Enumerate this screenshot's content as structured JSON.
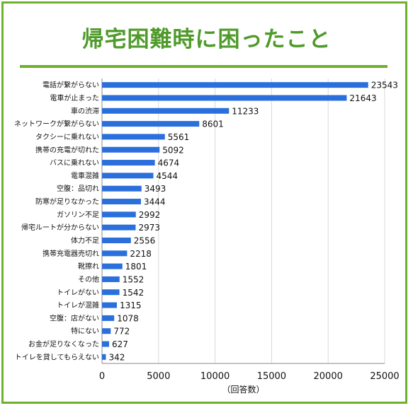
{
  "title": "帰宅困難時に困ったこと",
  "colors": {
    "bar": "#2a6fdc",
    "frame": "#6fb12c",
    "title": "#4f9a2a"
  },
  "chart_data": {
    "type": "bar",
    "orientation": "horizontal",
    "categories": [
      "電話が繋がらない",
      "電車が止まった",
      "車の渋滞",
      "ネットワークが繋がらない",
      "タクシーに乗れない",
      "携帯の充電が切れた",
      "バスに乗れない",
      "電車混雑",
      "空腹：品切れ",
      "防寒が足りなかった",
      "ガソリン不足",
      "帰宅ルートが分からない",
      "体力不足",
      "携帯充電器売切れ",
      "靴擦れ",
      "その他",
      "トイレがない",
      "トイレが混雑",
      "空腹：店がない",
      "特にない",
      "お金が足りなくなった",
      "トイレを貸してもらえない"
    ],
    "values": [
      23543,
      21643,
      11233,
      8601,
      5561,
      5092,
      4674,
      4544,
      3493,
      3444,
      2992,
      2973,
      2556,
      2218,
      1801,
      1552,
      1542,
      1315,
      1078,
      772,
      627,
      342
    ],
    "xlim": [
      0,
      25000
    ],
    "xticks": [
      "0",
      "5000",
      "10000",
      "15000",
      "20000",
      "25000"
    ],
    "xlabel": "（回答数）",
    "grid": true
  }
}
